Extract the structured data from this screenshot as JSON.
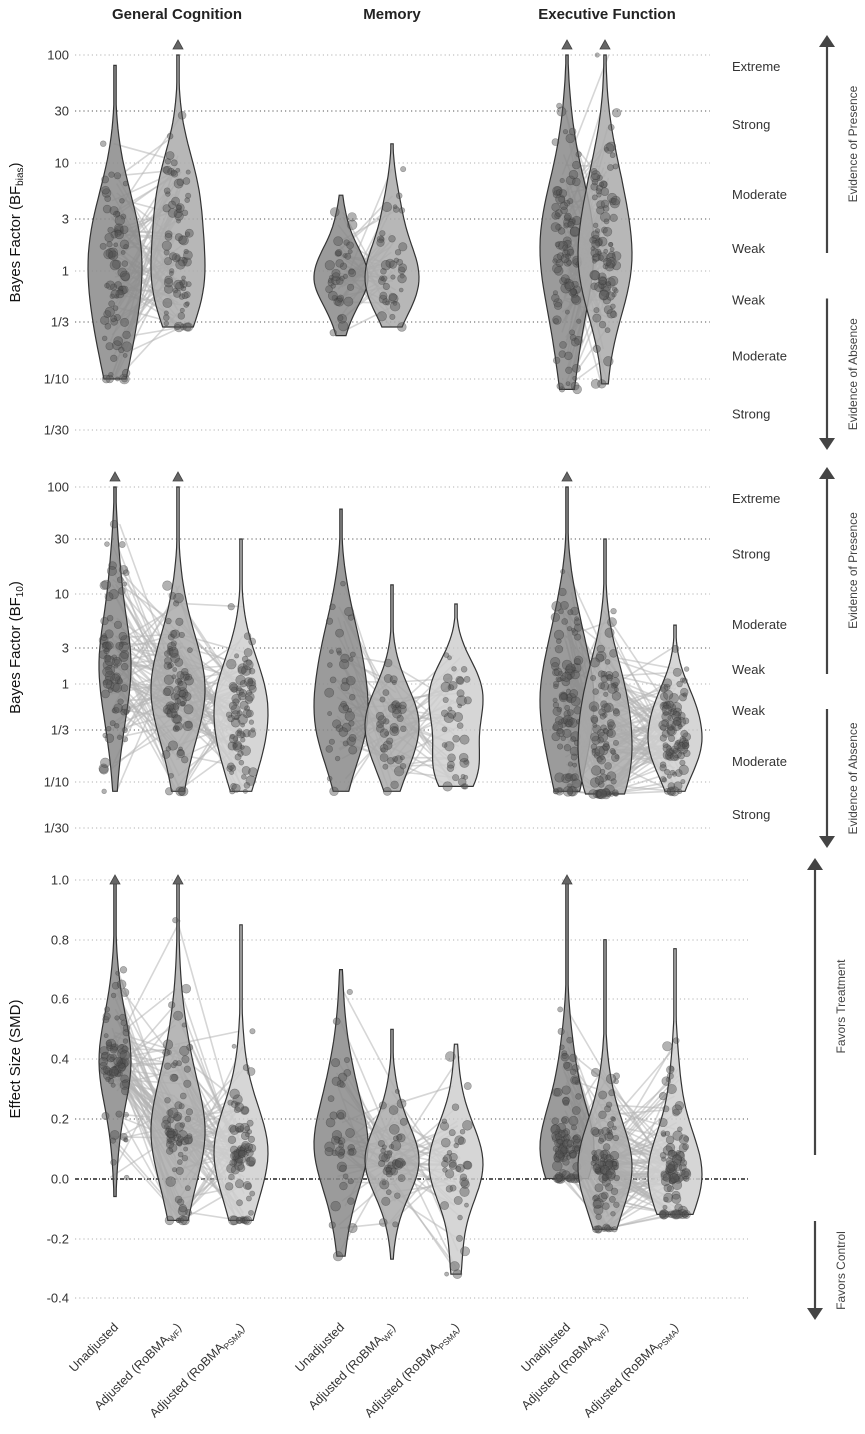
{
  "groups": [
    "General Cognition",
    "Memory",
    "Executive Function"
  ],
  "x_tick_labels": [
    {
      "main": "Unadjusted",
      "sub": ""
    },
    {
      "main": "Adjusted (RoBMA",
      "sub": "WF",
      "close": ")"
    },
    {
      "main": "Adjusted (RoBMA",
      "sub": "PSMA",
      "close": ")"
    }
  ],
  "panels": [
    {
      "ylabel_main": "Bayes Factor (BF",
      "ylabel_sub": "bias",
      "ylabel_close": ")",
      "ticks": [
        "100",
        "30",
        "10",
        "3",
        "1",
        "1/3",
        "1/10",
        "1/30"
      ],
      "evidence_upper": [
        "Extreme",
        "Strong",
        "Moderate",
        "Weak"
      ],
      "evidence_lower": [
        "Weak",
        "Moderate",
        "Strong"
      ],
      "side_upper": "Evidence of Presence",
      "side_lower": "Evidence of Absence"
    },
    {
      "ylabel_main": "Bayes Factor (BF",
      "ylabel_sub": "10",
      "ylabel_close": ")",
      "ticks": [
        "100",
        "30",
        "10",
        "3",
        "1",
        "1/3",
        "1/10",
        "1/30"
      ],
      "evidence_upper": [
        "Extreme",
        "Strong",
        "Moderate",
        "Weak"
      ],
      "evidence_lower": [
        "Weak",
        "Moderate",
        "Strong"
      ],
      "side_upper": "Evidence of Presence",
      "side_lower": "Evidence of Absence"
    },
    {
      "ylabel": "Effect Size (SMD)",
      "ticks": [
        "1.0",
        "0.8",
        "0.6",
        "0.4",
        "0.2",
        "0.0",
        "-0.2",
        "-0.4"
      ],
      "side_upper": "Favors Treatment",
      "side_lower": "Favors Control"
    }
  ],
  "chart_data": [
    {
      "type": "violin",
      "ylabel": "Bayes Factor (BF_bias)",
      "y_scale": "log",
      "ylim": [
        0.033,
        100
      ],
      "categories": [
        "Unadjusted",
        "Adjusted (RoBMA_WF)",
        "Adjusted (RoBMA_PSMA)"
      ],
      "groups": [
        {
          "name": "General Cognition",
          "violins": [
            {
              "category": "Unadjusted",
              "min": 0.1,
              "max": 80,
              "median": 1.0,
              "n": 80
            },
            {
              "category": "Adjusted (RoBMA_WF)",
              "min": 0.3,
              "max": 100,
              "median": 1.5,
              "n": 80
            }
          ]
        },
        {
          "name": "Memory",
          "violins": [
            {
              "category": "Unadjusted",
              "min": 0.25,
              "max": 5,
              "median": 0.9,
              "n": 40
            },
            {
              "category": "Adjusted (RoBMA_WF)",
              "min": 0.3,
              "max": 15,
              "median": 1.0,
              "n": 40
            }
          ]
        },
        {
          "name": "Executive Function",
          "violins": [
            {
              "category": "Unadjusted",
              "min": 0.08,
              "max": 100,
              "median": 1.2,
              "n": 100
            },
            {
              "category": "Adjusted (RoBMA_WF)",
              "min": 0.09,
              "max": 100,
              "median": 1.5,
              "n": 100
            }
          ]
        }
      ]
    },
    {
      "type": "violin",
      "ylabel": "Bayes Factor (BF_10)",
      "y_scale": "log",
      "ylim": [
        0.033,
        100
      ],
      "categories": [
        "Unadjusted",
        "Adjusted (RoBMA_WF)",
        "Adjusted (RoBMA_PSMA)"
      ],
      "groups": [
        {
          "name": "General Cognition",
          "violins": [
            {
              "category": "Unadjusted",
              "min": 0.08,
              "max": 100,
              "median": 1.5,
              "n": 80
            },
            {
              "category": "Adjusted (RoBMA_WF)",
              "min": 0.08,
              "max": 100,
              "median": 0.8,
              "n": 80
            },
            {
              "category": "Adjusted (RoBMA_PSMA)",
              "min": 0.08,
              "max": 30,
              "median": 0.6,
              "n": 80
            }
          ]
        },
        {
          "name": "Memory",
          "violins": [
            {
              "category": "Unadjusted",
              "min": 0.08,
              "max": 60,
              "median": 0.6,
              "n": 40
            },
            {
              "category": "Adjusted (RoBMA_WF)",
              "min": 0.08,
              "max": 12,
              "median": 0.4,
              "n": 40
            },
            {
              "category": "Adjusted (RoBMA_PSMA)",
              "min": 0.09,
              "max": 8,
              "median": 0.35,
              "n": 40
            }
          ]
        },
        {
          "name": "Executive Function",
          "violins": [
            {
              "category": "Unadjusted",
              "min": 0.08,
              "max": 100,
              "median": 0.8,
              "n": 100
            },
            {
              "category": "Adjusted (RoBMA_WF)",
              "min": 0.075,
              "max": 30,
              "median": 0.3,
              "n": 100
            },
            {
              "category": "Adjusted (RoBMA_PSMA)",
              "min": 0.08,
              "max": 5,
              "median": 0.3,
              "n": 100
            }
          ]
        }
      ]
    },
    {
      "type": "violin",
      "ylabel": "Effect Size (SMD)",
      "ylim": [
        -0.4,
        1.0
      ],
      "categories": [
        "Unadjusted",
        "Adjusted (RoBMA_WF)",
        "Adjusted (RoBMA_PSMA)"
      ],
      "groups": [
        {
          "name": "General Cognition",
          "violins": [
            {
              "category": "Unadjusted",
              "min": -0.06,
              "max": 1.0,
              "median": 0.38,
              "n": 80
            },
            {
              "category": "Adjusted (RoBMA_WF)",
              "min": -0.14,
              "max": 1.0,
              "median": 0.15,
              "n": 80
            },
            {
              "category": "Adjusted (RoBMA_PSMA)",
              "min": -0.14,
              "max": 0.85,
              "median": 0.08,
              "n": 80
            }
          ]
        },
        {
          "name": "Memory",
          "violins": [
            {
              "category": "Unadjusted",
              "min": -0.26,
              "max": 0.7,
              "median": 0.1,
              "n": 40
            },
            {
              "category": "Adjusted (RoBMA_WF)",
              "min": -0.27,
              "max": 0.5,
              "median": 0.05,
              "n": 40
            },
            {
              "category": "Adjusted (RoBMA_PSMA)",
              "min": -0.32,
              "max": 0.45,
              "median": 0.03,
              "n": 40
            }
          ]
        },
        {
          "name": "Executive Function",
          "violins": [
            {
              "category": "Unadjusted",
              "min": 0.0,
              "max": 1.0,
              "median": 0.1,
              "n": 100
            },
            {
              "category": "Adjusted (RoBMA_WF)",
              "min": -0.17,
              "max": 0.8,
              "median": 0.03,
              "n": 100
            },
            {
              "category": "Adjusted (RoBMA_PSMA)",
              "min": -0.12,
              "max": 0.77,
              "median": 0.02,
              "n": 100
            }
          ]
        }
      ]
    }
  ]
}
